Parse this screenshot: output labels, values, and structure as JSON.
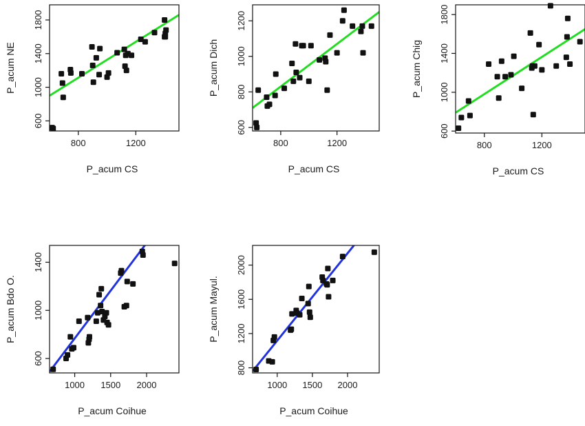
{
  "chart_data": [
    {
      "type": "scatter",
      "xlabel": "P_acum CS",
      "ylabel": "P_acum NE",
      "xlim": [
        600,
        1500
      ],
      "ylim": [
        480,
        1980
      ],
      "xticks": [
        800,
        1200
      ],
      "yticks": [
        600,
        1000,
        1400,
        1800
      ],
      "fit_color": "#22dd22",
      "fit": {
        "x": [
          600,
          1500
        ],
        "y": [
          900,
          1860
        ]
      },
      "x": [
        618,
        625,
        682,
        690,
        695,
        745,
        748,
        825,
        895,
        900,
        905,
        925,
        945,
        950,
        1000,
        1010,
        1070,
        1120,
        1125,
        1130,
        1135,
        1145,
        1170,
        1235,
        1265,
        1330,
        1400,
        1405,
        1410,
        1400,
        1405
      ],
      "y": [
        520,
        510,
        1160,
        1050,
        880,
        1210,
        1170,
        1160,
        1480,
        1260,
        1060,
        1350,
        1150,
        1460,
        1120,
        1170,
        1410,
        1450,
        1250,
        1380,
        1200,
        1400,
        1380,
        1570,
        1540,
        1650,
        1800,
        1640,
        1680,
        1600,
        1600
      ]
    },
    {
      "type": "scatter",
      "xlabel": "P_acum CS",
      "ylabel": "P_acum Dich",
      "xlim": [
        600,
        1500
      ],
      "ylim": [
        580,
        1290
      ],
      "xticks": [
        800,
        1200
      ],
      "yticks": [
        600,
        800,
        1000,
        1200
      ],
      "fit_color": "#22dd22",
      "fit": {
        "x": [
          600,
          1500
        ],
        "y": [
          710,
          1250
        ]
      },
      "x": [
        625,
        630,
        640,
        700,
        705,
        720,
        760,
        765,
        825,
        880,
        890,
        905,
        910,
        935,
        950,
        960,
        1000,
        1015,
        1075,
        1115,
        1120,
        1130,
        1150,
        1200,
        1240,
        1250,
        1310,
        1370,
        1380,
        1385,
        1445
      ],
      "y": [
        625,
        600,
        810,
        770,
        720,
        730,
        780,
        900,
        820,
        960,
        860,
        1070,
        910,
        880,
        1060,
        1060,
        860,
        1060,
        980,
        990,
        970,
        810,
        1120,
        1020,
        1200,
        1260,
        1170,
        1140,
        1170,
        1020,
        1170
      ]
    },
    {
      "type": "scatter",
      "xlabel": "P_acum CS",
      "ylabel": "P_acum Chig",
      "xlim": [
        600,
        1500
      ],
      "ylim": [
        580,
        1900
      ],
      "xticks": [
        800,
        1200
      ],
      "yticks": [
        600,
        1000,
        1400,
        1800
      ],
      "fit_color": "#22dd22",
      "fit": {
        "x": [
          600,
          1500
        ],
        "y": [
          790,
          1650
        ]
      },
      "x": [
        620,
        640,
        690,
        700,
        830,
        890,
        900,
        920,
        945,
        985,
        1005,
        1060,
        1120,
        1130,
        1135,
        1140,
        1150,
        1180,
        1200,
        1260,
        1300,
        1370,
        1375,
        1380,
        1395,
        1465
      ],
      "y": [
        630,
        740,
        910,
        760,
        1290,
        1160,
        940,
        1320,
        1160,
        1180,
        1370,
        1040,
        1610,
        1250,
        1270,
        770,
        1270,
        1490,
        1230,
        1890,
        1270,
        1360,
        1570,
        1760,
        1290,
        1520
      ]
    },
    {
      "type": "scatter",
      "xlabel": "P_acum Coihue",
      "ylabel": "P_acum Bdo O.",
      "xlim": [
        650,
        2450
      ],
      "ylim": [
        480,
        1540
      ],
      "xticks": [
        1000,
        1500,
        2000
      ],
      "yticks": [
        600,
        1000,
        1400
      ],
      "fit_color": "#2233dd",
      "fit": {
        "x": [
          650,
          2000
        ],
        "y": [
          490,
          1560
        ]
      },
      "x": [
        700,
        880,
        900,
        940,
        960,
        985,
        1060,
        1180,
        1190,
        1200,
        1205,
        1300,
        1320,
        1340,
        1360,
        1370,
        1380,
        1400,
        1420,
        1440,
        1450,
        1470,
        1640,
        1650,
        1690,
        1720,
        1730,
        1810,
        1940,
        1950,
        2390
      ],
      "y": [
        510,
        600,
        630,
        780,
        680,
        690,
        910,
        940,
        730,
        760,
        780,
        910,
        980,
        1130,
        1040,
        1180,
        990,
        920,
        950,
        980,
        900,
        880,
        1310,
        1330,
        1030,
        1040,
        1240,
        1220,
        1490,
        1460,
        1390
      ]
    },
    {
      "type": "scatter",
      "xlabel": "P_acum Coihue",
      "ylabel": "P_acum Mayul.",
      "xlim": [
        650,
        2450
      ],
      "ylim": [
        740,
        2230
      ],
      "xticks": [
        1000,
        1500,
        2000
      ],
      "yticks": [
        800,
        1200,
        1600,
        2000
      ],
      "fit_color": "#2233dd",
      "fit": {
        "x": [
          650,
          2100
        ],
        "y": [
          760,
          2240
        ]
      },
      "x": [
        700,
        880,
        930,
        945,
        960,
        1190,
        1200,
        1210,
        1270,
        1280,
        1320,
        1350,
        1440,
        1450,
        1460,
        1470,
        1640,
        1650,
        1700,
        1710,
        1720,
        1730,
        1790,
        1930,
        2380
      ],
      "y": [
        780,
        880,
        870,
        1120,
        1160,
        1240,
        1250,
        1430,
        1470,
        1440,
        1420,
        1610,
        1550,
        1750,
        1450,
        1390,
        1860,
        1820,
        1780,
        1770,
        1960,
        1630,
        1820,
        2100,
        2150
      ]
    }
  ]
}
